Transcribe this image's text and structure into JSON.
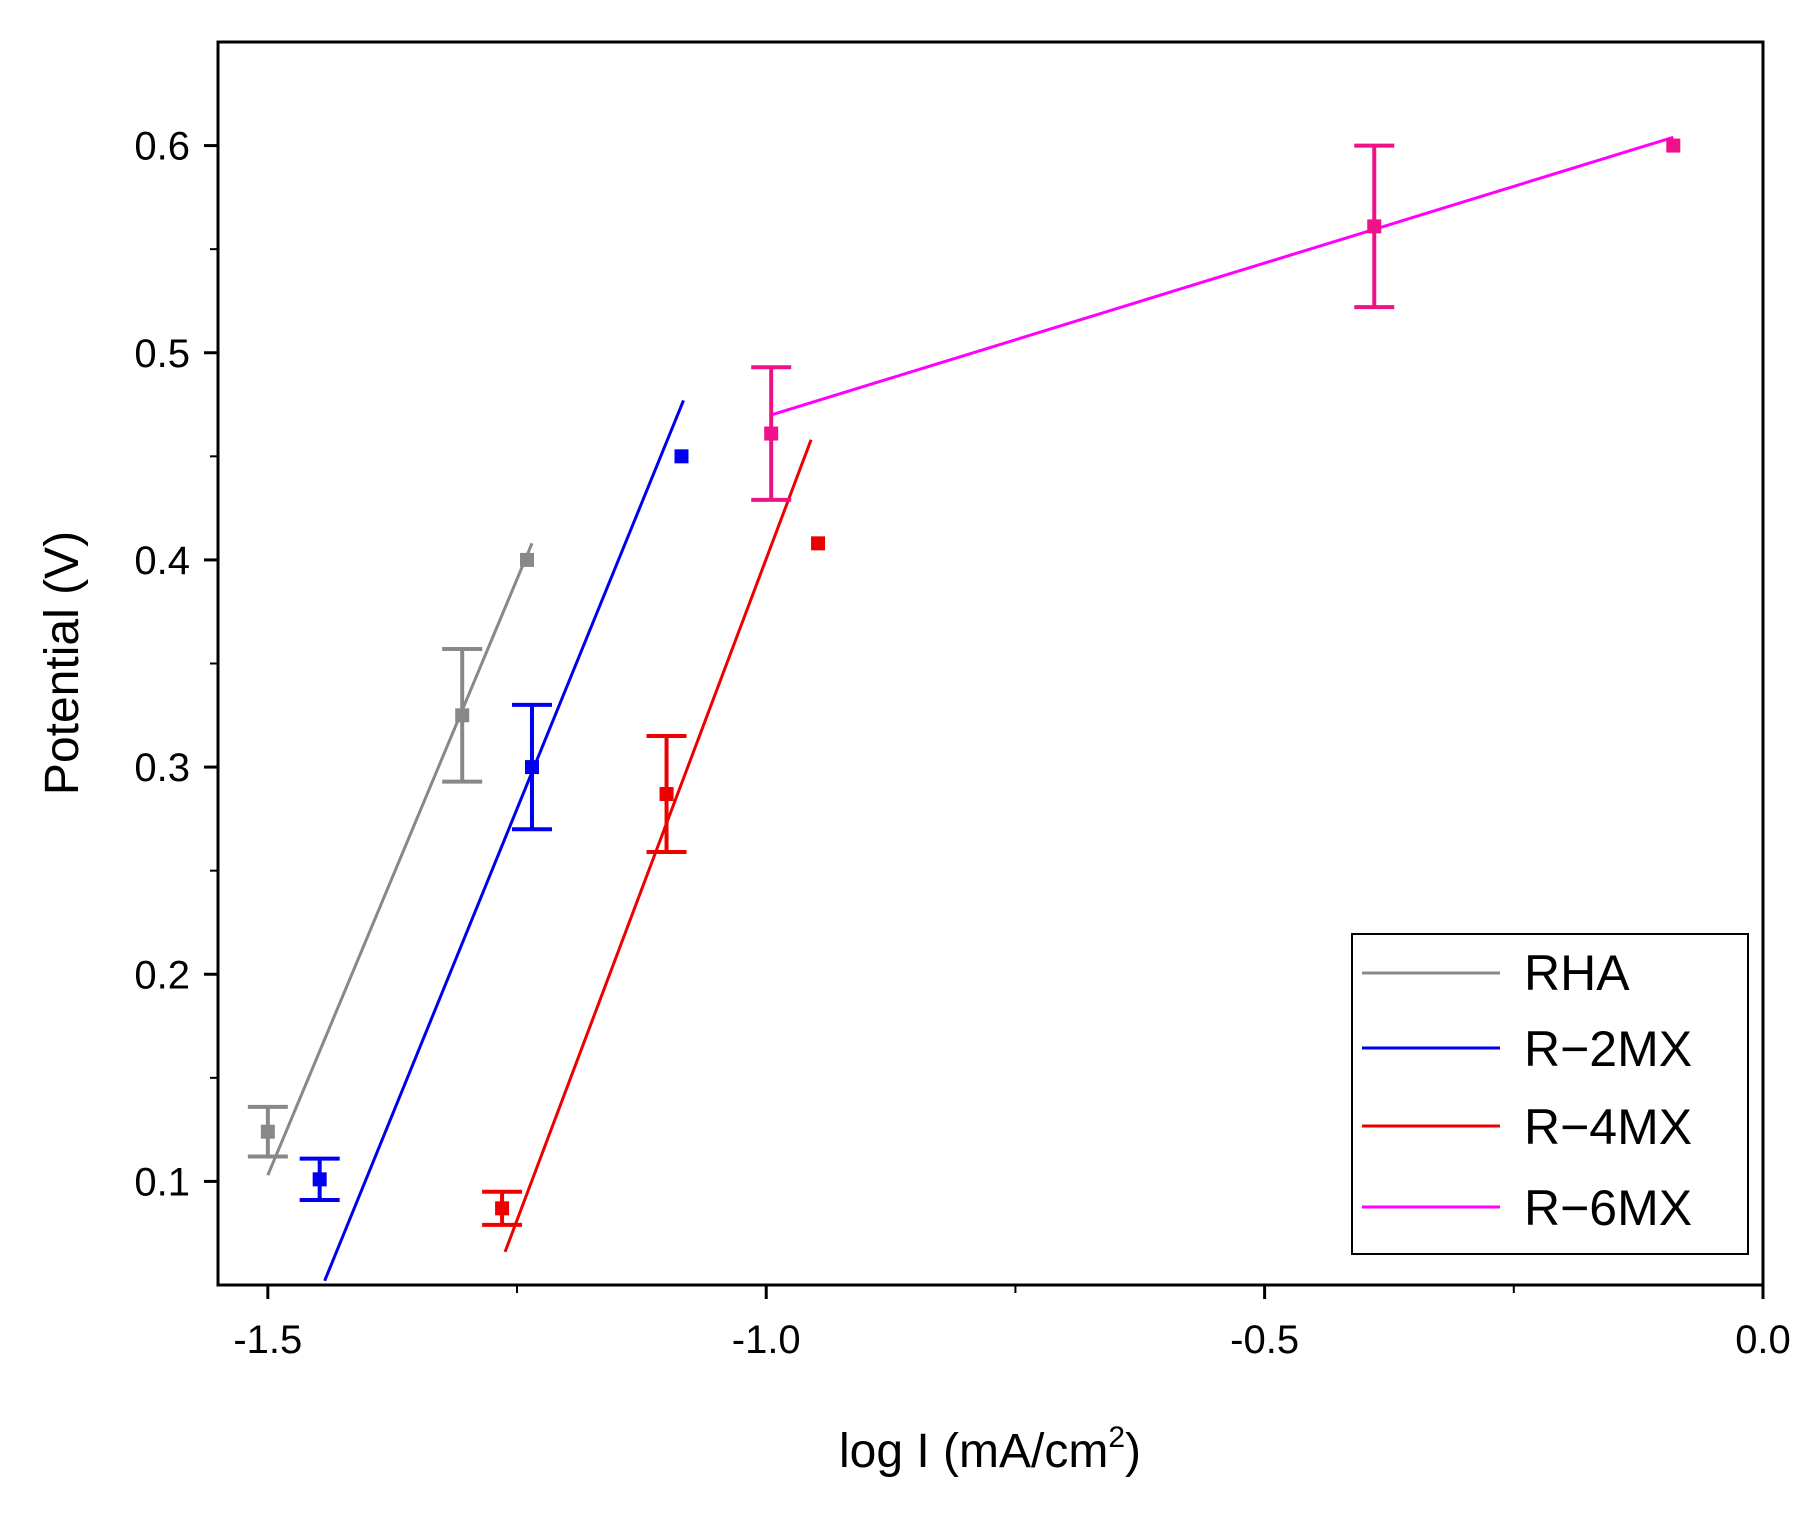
{
  "chart_data": {
    "type": "scatter",
    "title": "",
    "xlabel_main": "log I (mA/cm",
    "xlabel_sup": "2",
    "xlabel_close": ")",
    "ylabel": "Potential (V)",
    "xlim": [
      -1.55,
      0.0
    ],
    "ylim": [
      0.05,
      0.65
    ],
    "x_major_ticks": [
      -1.5,
      -1.0,
      -0.5,
      0.0
    ],
    "x_tick_labels": [
      "-1.5",
      "-1.0",
      "-0.5",
      "0.0"
    ],
    "x_minor_ticks": [
      -1.25,
      -0.75,
      -0.25
    ],
    "y_major_ticks": [
      0.1,
      0.2,
      0.3,
      0.4,
      0.5,
      0.6
    ],
    "y_tick_labels": [
      "0.1",
      "0.2",
      "0.3",
      "0.4",
      "0.5",
      "0.6"
    ],
    "y_minor_ticks": [
      0.15,
      0.25,
      0.35,
      0.45,
      0.55
    ],
    "legend_position": "bottom-right",
    "series": [
      {
        "name": "RHA",
        "color": "#888888",
        "points": [
          {
            "x": -1.5,
            "y": 0.124,
            "err": 0.012
          },
          {
            "x": -1.305,
            "y": 0.325,
            "err": 0.032
          },
          {
            "x": -1.24,
            "y": 0.4,
            "err": 0
          }
        ],
        "fit": {
          "x": [
            -1.5,
            -1.235
          ],
          "y": [
            0.103,
            0.408
          ]
        }
      },
      {
        "name": "R−2MX",
        "color": "#0000ee",
        "points": [
          {
            "x": -1.448,
            "y": 0.101,
            "err": 0.01
          },
          {
            "x": -1.235,
            "y": 0.3,
            "err": 0.03
          },
          {
            "x": -1.085,
            "y": 0.45,
            "err": 0
          }
        ],
        "fit": {
          "x": [
            -1.443,
            -1.083
          ],
          "y": [
            0.052,
            0.477
          ]
        }
      },
      {
        "name": "R−4MX",
        "color": "#ee0000",
        "points": [
          {
            "x": -1.265,
            "y": 0.087,
            "err": 0.008
          },
          {
            "x": -1.1,
            "y": 0.287,
            "err": 0.028
          },
          {
            "x": -0.948,
            "y": 0.408,
            "err": 0
          }
        ],
        "fit": {
          "x": [
            -1.262,
            -0.955
          ],
          "y": [
            0.066,
            0.458
          ]
        }
      },
      {
        "name": "R−6MX",
        "color": "#ee1188",
        "points": [
          {
            "x": -0.995,
            "y": 0.461,
            "err": 0.032
          },
          {
            "x": -0.39,
            "y": 0.561,
            "err": 0.039
          },
          {
            "x": -0.09,
            "y": 0.6,
            "err": 0
          }
        ],
        "fit": {
          "x": [
            -0.995,
            -0.09
          ],
          "y": [
            0.47,
            0.604
          ]
        },
        "fit_color": "#ff00ff"
      }
    ]
  }
}
